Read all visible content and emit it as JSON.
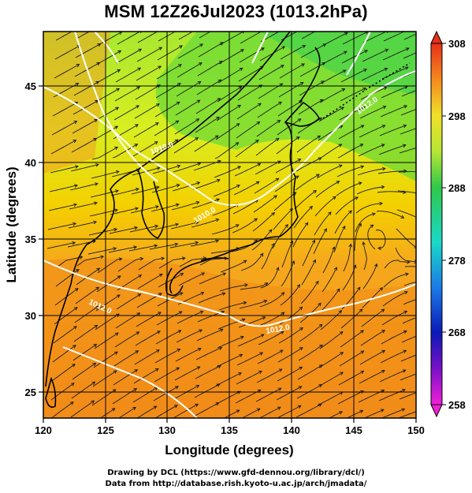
{
  "title": "MSM 12Z26Jul2023 (1013.2hPa)",
  "map": {
    "x_axis": {
      "label": "Longitude (degrees)",
      "range": [
        120,
        150
      ],
      "ticks": [
        "120",
        "125",
        "130",
        "135",
        "140",
        "145",
        "150"
      ]
    },
    "y_axis": {
      "label": "Latitude  (degrees)",
      "range": [
        22.4,
        47.6
      ],
      "ticks": [
        "25",
        "30",
        "35",
        "40",
        "45"
      ]
    },
    "region": "Japan and surrounding seas",
    "field": "temperature shaded, streamlines, pressure contours",
    "contour_labels": [
      "1010.0",
      "1010.0",
      "1012.0",
      "1012.0",
      "1012.0"
    ],
    "grid": true
  },
  "colorbar": {
    "ticks": [
      "308",
      "298",
      "288",
      "278",
      "268",
      "258"
    ],
    "colors": [
      "#ff0000",
      "#ff6600",
      "#ff9900",
      "#ffcc00",
      "#ffff00",
      "#ccff00",
      "#66ff00",
      "#00dd44",
      "#00ddaa",
      "#00ccff",
      "#0088ff",
      "#0033ff",
      "#0000cc",
      "#6600cc",
      "#cc00cc",
      "#ff00ff"
    ]
  },
  "credits": {
    "line1": "Drawing by DCL (https://www.gfd-dennou.org/library/dcl/)",
    "line2": "Data from http://database.rish.kyoto-u.ac.jp/arch/jmadata/"
  }
}
